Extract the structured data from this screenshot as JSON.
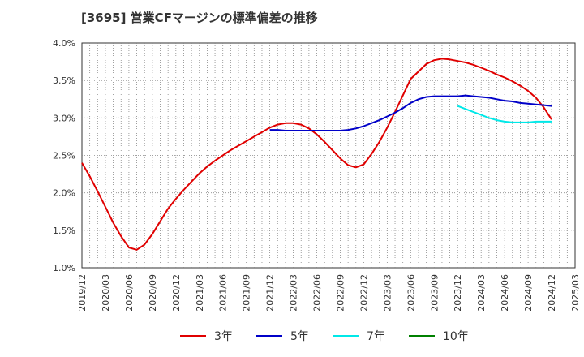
{
  "chart_data": {
    "type": "line",
    "title": "[3695]  営業CFマージンの標準偏差の推移",
    "xlabel": "",
    "ylabel": "",
    "ylim": [
      1.0,
      4.0
    ],
    "y_ticks": [
      "1.0%",
      "1.5%",
      "2.0%",
      "2.5%",
      "3.0%",
      "3.5%",
      "4.0%"
    ],
    "x_ticks": [
      "2019/12",
      "2020/03",
      "2020/06",
      "2020/09",
      "2020/12",
      "2021/03",
      "2021/06",
      "2021/09",
      "2021/12",
      "2022/03",
      "2022/06",
      "2022/09",
      "2022/12",
      "2023/03",
      "2023/06",
      "2023/09",
      "2023/12",
      "2024/03",
      "2024/06",
      "2024/09",
      "2024/12",
      "2025/03"
    ],
    "grid": true,
    "legend_position": "bottom",
    "x_unit": "month",
    "series": [
      {
        "name": "3年",
        "color": "#e00000",
        "x": [
          "2019/12",
          "2020/01",
          "2020/02",
          "2020/03",
          "2020/04",
          "2020/05",
          "2020/06",
          "2020/07",
          "2020/08",
          "2020/09",
          "2020/10",
          "2020/11",
          "2020/12",
          "2021/01",
          "2021/02",
          "2021/03",
          "2021/04",
          "2021/05",
          "2021/06",
          "2021/07",
          "2021/08",
          "2021/09",
          "2021/10",
          "2021/11",
          "2021/12",
          "2022/01",
          "2022/02",
          "2022/03",
          "2022/04",
          "2022/05",
          "2022/06",
          "2022/07",
          "2022/08",
          "2022/09",
          "2022/10",
          "2022/11",
          "2022/12",
          "2023/01",
          "2023/02",
          "2023/03",
          "2023/04",
          "2023/05",
          "2023/06",
          "2023/07",
          "2023/08",
          "2023/09",
          "2023/10",
          "2023/11",
          "2023/12",
          "2024/01",
          "2024/02",
          "2024/03",
          "2024/04",
          "2024/05",
          "2024/06",
          "2024/07",
          "2024/08",
          "2024/09",
          "2024/10",
          "2024/11",
          "2024/12"
        ],
        "values": [
          2.4,
          2.22,
          2.02,
          1.81,
          1.6,
          1.42,
          1.27,
          1.24,
          1.31,
          1.45,
          1.62,
          1.79,
          1.92,
          2.04,
          2.15,
          2.26,
          2.35,
          2.43,
          2.5,
          2.57,
          2.63,
          2.69,
          2.75,
          2.81,
          2.87,
          2.91,
          2.93,
          2.93,
          2.91,
          2.86,
          2.78,
          2.68,
          2.57,
          2.46,
          2.37,
          2.34,
          2.38,
          2.52,
          2.68,
          2.87,
          3.08,
          3.3,
          3.52,
          3.62,
          3.72,
          3.77,
          3.79,
          3.78,
          3.76,
          3.74,
          3.71,
          3.67,
          3.63,
          3.58,
          3.54,
          3.49,
          3.43,
          3.36,
          3.27,
          3.14,
          2.98
        ]
      },
      {
        "name": "5年",
        "color": "#0000c8",
        "x": [
          "2021/12",
          "2022/01",
          "2022/02",
          "2022/03",
          "2022/04",
          "2022/05",
          "2022/06",
          "2022/07",
          "2022/08",
          "2022/09",
          "2022/10",
          "2022/11",
          "2022/12",
          "2023/01",
          "2023/02",
          "2023/03",
          "2023/04",
          "2023/05",
          "2023/06",
          "2023/07",
          "2023/08",
          "2023/09",
          "2023/10",
          "2023/11",
          "2023/12",
          "2024/01",
          "2024/02",
          "2024/03",
          "2024/04",
          "2024/05",
          "2024/06",
          "2024/07",
          "2024/08",
          "2024/09",
          "2024/10",
          "2024/11",
          "2024/12"
        ],
        "values": [
          2.84,
          2.84,
          2.83,
          2.83,
          2.83,
          2.83,
          2.83,
          2.83,
          2.83,
          2.83,
          2.84,
          2.86,
          2.89,
          2.93,
          2.97,
          3.02,
          3.07,
          3.13,
          3.2,
          3.25,
          3.28,
          3.29,
          3.29,
          3.29,
          3.29,
          3.3,
          3.29,
          3.28,
          3.27,
          3.25,
          3.23,
          3.22,
          3.2,
          3.19,
          3.18,
          3.17,
          3.16
        ]
      },
      {
        "name": "7年",
        "color": "#00e8e8",
        "x": [
          "2023/12",
          "2024/01",
          "2024/02",
          "2024/03",
          "2024/04",
          "2024/05",
          "2024/06",
          "2024/07",
          "2024/08",
          "2024/09",
          "2024/10",
          "2024/11",
          "2024/12"
        ],
        "values": [
          3.16,
          3.12,
          3.08,
          3.04,
          3.0,
          2.97,
          2.95,
          2.94,
          2.94,
          2.94,
          2.95,
          2.95,
          2.95
        ]
      },
      {
        "name": "10年",
        "color": "#008000",
        "x": [],
        "values": []
      }
    ]
  }
}
